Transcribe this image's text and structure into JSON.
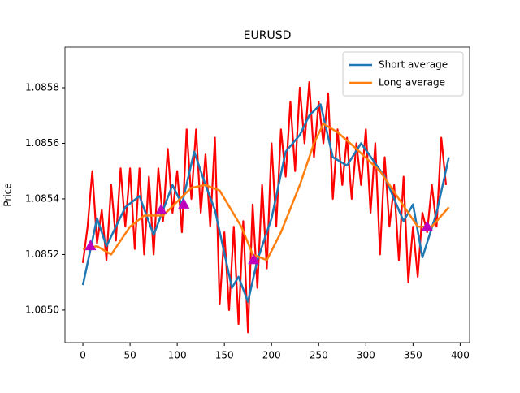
{
  "chart_data": {
    "type": "line",
    "title": "EURUSD",
    "ylabel": "Price",
    "xlim": [
      -19,
      410
    ],
    "ylim": [
      1.084883,
      1.085946
    ],
    "xticks": [
      0,
      50,
      100,
      150,
      200,
      250,
      300,
      350,
      400
    ],
    "yticks": [
      {
        "value": 1.085,
        "label": "1.0850"
      },
      1.0852,
      1.0854,
      1.0856,
      1.0858
    ],
    "legend": "upper right",
    "series": [
      {
        "color": "#ff0000",
        "width": 2.2,
        "x": [
          0,
          5,
          10,
          15,
          20,
          25,
          30,
          35,
          40,
          45,
          50,
          55,
          60,
          65,
          70,
          75,
          80,
          85,
          90,
          95,
          100,
          105,
          110,
          115,
          120,
          125,
          130,
          135,
          140,
          145,
          150,
          155,
          160,
          165,
          170,
          175,
          180,
          185,
          190,
          195,
          200,
          205,
          210,
          215,
          220,
          225,
          230,
          235,
          240,
          245,
          250,
          255,
          260,
          265,
          270,
          275,
          280,
          285,
          290,
          295,
          300,
          305,
          310,
          315,
          320,
          325,
          330,
          335,
          340,
          345,
          350,
          355,
          360,
          365,
          370,
          375,
          380,
          385
        ],
        "values": [
          1.08517,
          1.0853,
          1.0855,
          1.08524,
          1.08536,
          1.08518,
          1.08545,
          1.08525,
          1.08551,
          1.0853,
          1.08551,
          1.08522,
          1.08551,
          1.0852,
          1.08548,
          1.0852,
          1.08551,
          1.08532,
          1.08558,
          1.08535,
          1.0855,
          1.08528,
          1.08565,
          1.0854,
          1.08565,
          1.08535,
          1.08556,
          1.0853,
          1.08562,
          1.08502,
          1.08528,
          1.085,
          1.0853,
          1.08495,
          1.08532,
          1.08492,
          1.08538,
          1.08508,
          1.08545,
          1.08515,
          1.0856,
          1.0853,
          1.08565,
          1.08548,
          1.08575,
          1.0855,
          1.0858,
          1.0856,
          1.08582,
          1.08555,
          1.08575,
          1.0856,
          1.08578,
          1.0854,
          1.08565,
          1.08545,
          1.08562,
          1.0854,
          1.0856,
          1.08545,
          1.08565,
          1.08535,
          1.0856,
          1.0852,
          1.08555,
          1.0853,
          1.08545,
          1.08518,
          1.08548,
          1.0851,
          1.0853,
          1.08512,
          1.08535,
          1.08528,
          1.08545,
          1.0853,
          1.08562,
          1.08545
        ]
      },
      {
        "name": "Short average",
        "color": "#1f77b4",
        "width": 2.5,
        "x": [
          0,
          15,
          25,
          45,
          60,
          75,
          95,
          105,
          118,
          130,
          140,
          158,
          165,
          175,
          185,
          200,
          215,
          230,
          240,
          252,
          265,
          280,
          295,
          320,
          340,
          350,
          360,
          375,
          388
        ],
        "values": [
          1.08509,
          1.08533,
          1.08523,
          1.08537,
          1.08541,
          1.08527,
          1.08545,
          1.08538,
          1.08557,
          1.08545,
          1.08536,
          1.08508,
          1.08512,
          1.08503,
          1.08518,
          1.08533,
          1.08557,
          1.08563,
          1.0857,
          1.08574,
          1.08555,
          1.08552,
          1.0856,
          1.08548,
          1.08532,
          1.08538,
          1.08519,
          1.08535,
          1.08555
        ]
      },
      {
        "name": "Long average",
        "color": "#ff7f0e",
        "width": 2.5,
        "x": [
          0,
          15,
          30,
          50,
          65,
          85,
          100,
          115,
          130,
          145,
          168,
          180,
          195,
          210,
          230,
          245,
          255,
          270,
          290,
          315,
          335,
          355,
          370,
          388
        ],
        "values": [
          1.08522,
          1.08523,
          1.0852,
          1.0853,
          1.08534,
          1.08534,
          1.08539,
          1.08544,
          1.08545,
          1.08543,
          1.0853,
          1.0852,
          1.08518,
          1.08528,
          1.08545,
          1.0856,
          1.08567,
          1.08564,
          1.08558,
          1.0855,
          1.0854,
          1.0853,
          1.0853,
          1.08537
        ]
      },
      {
        "color": "#bf00bf",
        "marker": "triangle",
        "x": [
          8,
          83,
          107,
          181,
          365
        ],
        "values": [
          1.08523,
          1.08536,
          1.08538,
          1.08518,
          1.0853
        ]
      }
    ]
  }
}
